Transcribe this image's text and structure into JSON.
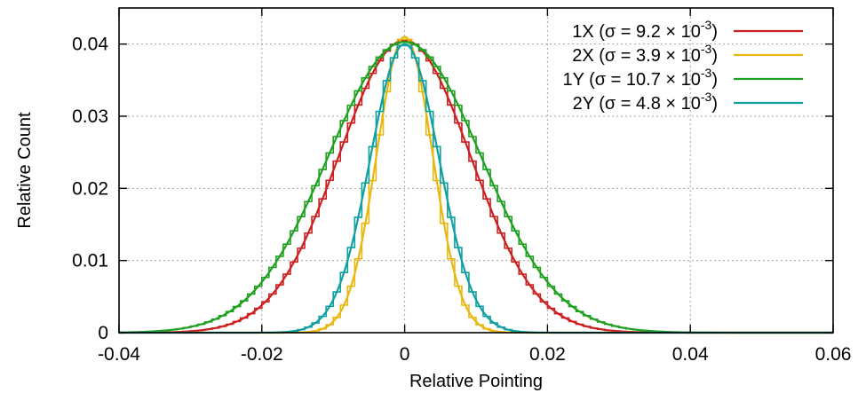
{
  "chart_data": {
    "type": "line",
    "title": "",
    "xlabel": "Relative Pointing",
    "ylabel": "Relative Count",
    "xlim": [
      -0.04,
      0.06
    ],
    "ylim": [
      0,
      0.045
    ],
    "xticks": [
      -0.04,
      -0.02,
      0,
      0.02,
      0.04,
      0.06
    ],
    "xtick_labels": [
      "-0.04",
      "-0.02",
      "0",
      "0.02",
      "0.04",
      "0.06"
    ],
    "yticks": [
      0,
      0.01,
      0.02,
      0.03,
      0.04
    ],
    "ytick_labels": [
      "0",
      "0.01",
      "0.02",
      "0.03",
      "0.04"
    ],
    "grid": true,
    "legend_position": "top-right",
    "histogram_bin_width": 0.001,
    "series": [
      {
        "name": "1X",
        "legend_text": "1X (σ = 9.2 × 10",
        "legend_exp": "-3",
        "legend_close": ")",
        "sigma": 0.0092,
        "peak": 0.0405,
        "color": "#cc2020"
      },
      {
        "name": "2X",
        "legend_text": "2X (σ = 3.9 × 10",
        "legend_exp": "-3",
        "legend_close": ")",
        "sigma": 0.0039,
        "peak": 0.041,
        "color": "#e8b810"
      },
      {
        "name": "1Y",
        "legend_text": "1Y (σ = 10.7 × 10",
        "legend_exp": "-3",
        "legend_close": ")",
        "sigma": 0.0107,
        "peak": 0.0403,
        "color": "#20a020"
      },
      {
        "name": "2Y",
        "legend_text": "2Y (σ = 4.8 × 10",
        "legend_exp": "-3",
        "legend_close": ")",
        "sigma": 0.0048,
        "peak": 0.04,
        "color": "#10a0a0"
      }
    ]
  }
}
